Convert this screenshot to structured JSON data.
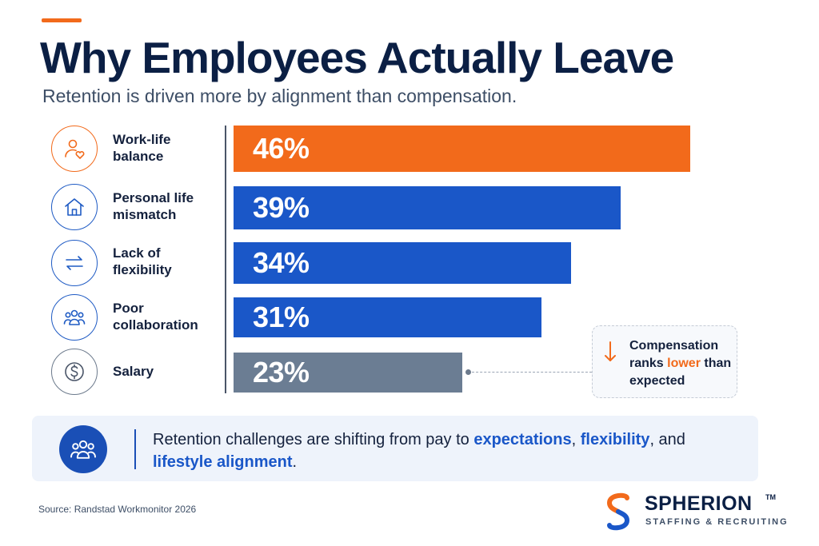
{
  "header": {
    "title": "Why Employees Actually Leave",
    "subtitle": "Retention is driven more by alignment than compensation."
  },
  "colors": {
    "accent_orange": "#f26a1b",
    "bar_blue": "#1a57c8",
    "bar_grey": "#6b7d93",
    "navy": "#0b1f44"
  },
  "rows": [
    {
      "label": "Work-life balance",
      "icon": "person-heart-icon",
      "value_label": "46%"
    },
    {
      "label": "Personal life mismatch",
      "icon": "house-icon",
      "value_label": "39%"
    },
    {
      "label": "Lack of flexibility",
      "icon": "swap-arrows-icon",
      "value_label": "34%"
    },
    {
      "label": "Poor collaboration",
      "icon": "people-group-icon",
      "value_label": "31%"
    },
    {
      "label": "Salary",
      "icon": "dollar-coin-icon",
      "value_label": "23%"
    }
  ],
  "chart_data": {
    "type": "bar",
    "orientation": "horizontal",
    "title": "Why Employees Actually Leave",
    "categories": [
      "Work-life balance",
      "Personal life mismatch",
      "Lack of flexibility",
      "Poor collaboration",
      "Salary"
    ],
    "values": [
      46,
      39,
      34,
      31,
      23
    ],
    "unit": "%",
    "xlim": [
      0,
      46
    ],
    "grid": false,
    "highlight": {
      "Work-life balance": "#f26a1b",
      "Salary": "#6b7d93"
    }
  },
  "callout": {
    "prefix": "Compensation ranks ",
    "highlight": "lower",
    "suffix": " than expected"
  },
  "banner": {
    "text_1": "Retention challenges are shifting from pay to ",
    "em_1": "expectations",
    "text_2": ", ",
    "em_2": "flexibility",
    "text_3": ", and ",
    "em_3": "lifestyle alignment",
    "text_4": "."
  },
  "footer": {
    "source": "Source: Randstad Workmonitor 2026",
    "logo_name": "SPHERION",
    "logo_tm": "TM",
    "logo_tagline": "STAFFING & RECRUITING"
  }
}
